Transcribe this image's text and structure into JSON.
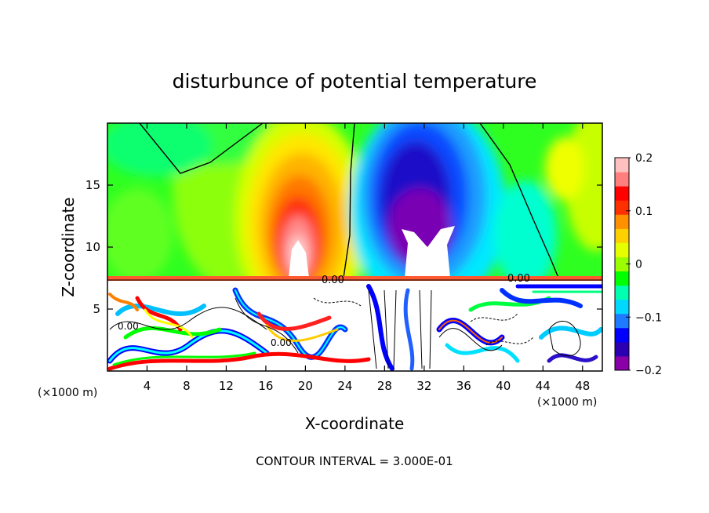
{
  "chart_data": {
    "type": "heatmap",
    "title": "disturbunce of potential temperature",
    "xlabel": "X-coordinate",
    "ylabel": "Z-coordinate",
    "x_unit": "(×1000 m)",
    "y_unit": "(×1000 m)",
    "x_ticks": [
      4,
      8,
      12,
      16,
      20,
      24,
      28,
      32,
      36,
      40,
      44,
      48
    ],
    "y_ticks": [
      5,
      10,
      15
    ],
    "xlim": [
      0,
      50
    ],
    "ylim": [
      0,
      20
    ],
    "colorbar": {
      "ticks": [
        "0.2",
        "0.1",
        "0",
        "−0.1",
        "−0.2"
      ],
      "tick_values": [
        0.2,
        0.1,
        0,
        -0.1,
        -0.2
      ],
      "range": [
        -0.2,
        0.2
      ]
    },
    "contour_labels": [
      "0.00",
      "0.00",
      "0.00",
      "0.00"
    ],
    "footer": "CONTOUR INTERVAL = 3.000E-01",
    "colors": {
      "scale": [
        "#8a00a8",
        "#2a00b0",
        "#0000ff",
        "#1e7aff",
        "#00d8ff",
        "#00ffb0",
        "#00ff00",
        "#9cff00",
        "#e6ff00",
        "#ffd000",
        "#ff9000",
        "#ff3000",
        "#ff0000",
        "#ff7f7f",
        "#ffc0c0"
      ]
    }
  }
}
